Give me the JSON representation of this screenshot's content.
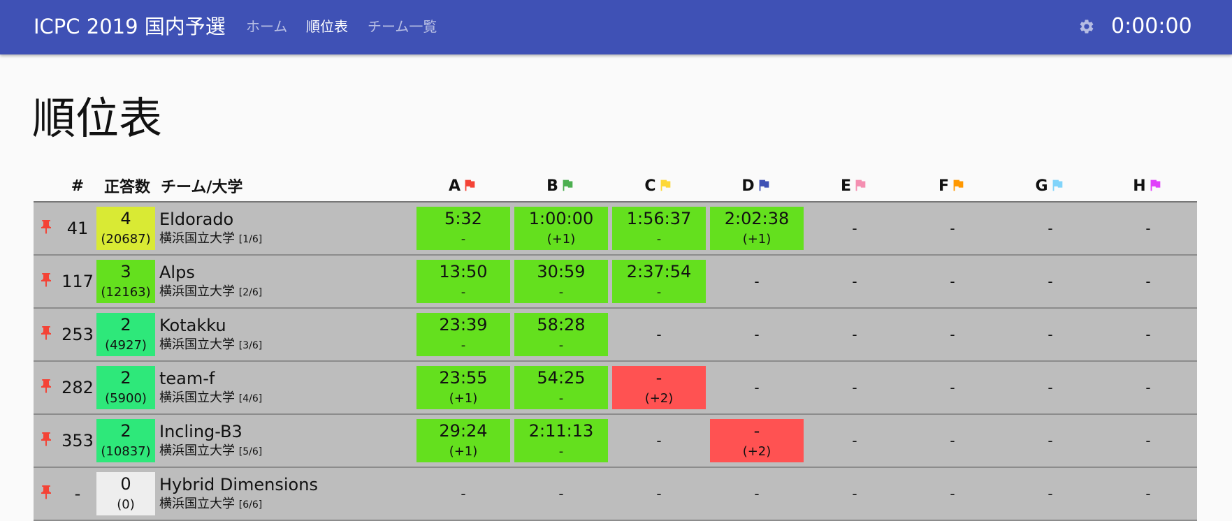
{
  "header": {
    "brand": "ICPC 2019 国内予選",
    "nav": [
      {
        "label": "ホーム",
        "active": false
      },
      {
        "label": "順位表",
        "active": true
      },
      {
        "label": "チーム一覧",
        "active": false
      }
    ],
    "timer": "0:00:00",
    "settings_icon": "gear-icon",
    "bar_color": "#3f51b5"
  },
  "page": {
    "title": "順位表"
  },
  "table": {
    "headers": {
      "rank": "#",
      "solved": "正答数",
      "team": "チーム/大学"
    },
    "problems": [
      {
        "label": "A",
        "color": "#f44336"
      },
      {
        "label": "B",
        "color": "#4caf50"
      },
      {
        "label": "C",
        "color": "#fdd835"
      },
      {
        "label": "D",
        "color": "#3f51b5"
      },
      {
        "label": "E",
        "color": "#f48fb1"
      },
      {
        "label": "F",
        "color": "#ff9800"
      },
      {
        "label": "G",
        "color": "#81d4fa"
      },
      {
        "label": "H",
        "color": "#e040fb"
      }
    ],
    "status_colors": {
      "solved": "#64e01e",
      "failed": "#ff5252"
    },
    "rows": [
      {
        "rank": "41",
        "solved": "4",
        "penalty": "(20687)",
        "solved_color": "#d9ea34",
        "team": "Eldorado",
        "university": "横浜国立大学",
        "index": "[1/6]",
        "results": [
          {
            "status": "solved",
            "time": "5:32",
            "tries": "-"
          },
          {
            "status": "solved",
            "time": "1:00:00",
            "tries": "(+1)"
          },
          {
            "status": "solved",
            "time": "1:56:37",
            "tries": "-"
          },
          {
            "status": "solved",
            "time": "2:02:38",
            "tries": "(+1)"
          },
          {
            "status": "none",
            "time": "-",
            "tries": ""
          },
          {
            "status": "none",
            "time": "-",
            "tries": ""
          },
          {
            "status": "none",
            "time": "-",
            "tries": ""
          },
          {
            "status": "none",
            "time": "-",
            "tries": ""
          }
        ]
      },
      {
        "rank": "117",
        "solved": "3",
        "penalty": "(12163)",
        "solved_color": "#64e01e",
        "team": "Alps",
        "university": "横浜国立大学",
        "index": "[2/6]",
        "results": [
          {
            "status": "solved",
            "time": "13:50",
            "tries": "-"
          },
          {
            "status": "solved",
            "time": "30:59",
            "tries": "-"
          },
          {
            "status": "solved",
            "time": "2:37:54",
            "tries": "-"
          },
          {
            "status": "none",
            "time": "-",
            "tries": ""
          },
          {
            "status": "none",
            "time": "-",
            "tries": ""
          },
          {
            "status": "none",
            "time": "-",
            "tries": ""
          },
          {
            "status": "none",
            "time": "-",
            "tries": ""
          },
          {
            "status": "none",
            "time": "-",
            "tries": ""
          }
        ]
      },
      {
        "rank": "253",
        "solved": "2",
        "penalty": "(4927)",
        "solved_color": "#2ee87a",
        "team": "Kotakku",
        "university": "横浜国立大学",
        "index": "[3/6]",
        "results": [
          {
            "status": "solved",
            "time": "23:39",
            "tries": "-"
          },
          {
            "status": "solved",
            "time": "58:28",
            "tries": "-"
          },
          {
            "status": "none",
            "time": "-",
            "tries": ""
          },
          {
            "status": "none",
            "time": "-",
            "tries": ""
          },
          {
            "status": "none",
            "time": "-",
            "tries": ""
          },
          {
            "status": "none",
            "time": "-",
            "tries": ""
          },
          {
            "status": "none",
            "time": "-",
            "tries": ""
          },
          {
            "status": "none",
            "time": "-",
            "tries": ""
          }
        ]
      },
      {
        "rank": "282",
        "solved": "2",
        "penalty": "(5900)",
        "solved_color": "#2ee87a",
        "team": "team-f",
        "university": "横浜国立大学",
        "index": "[4/6]",
        "results": [
          {
            "status": "solved",
            "time": "23:55",
            "tries": "(+1)"
          },
          {
            "status": "solved",
            "time": "54:25",
            "tries": "-"
          },
          {
            "status": "failed",
            "time": "-",
            "tries": "(+2)"
          },
          {
            "status": "none",
            "time": "-",
            "tries": ""
          },
          {
            "status": "none",
            "time": "-",
            "tries": ""
          },
          {
            "status": "none",
            "time": "-",
            "tries": ""
          },
          {
            "status": "none",
            "time": "-",
            "tries": ""
          },
          {
            "status": "none",
            "time": "-",
            "tries": ""
          }
        ]
      },
      {
        "rank": "353",
        "solved": "2",
        "penalty": "(10837)",
        "solved_color": "#2ee87a",
        "team": "Incling-B3",
        "university": "横浜国立大学",
        "index": "[5/6]",
        "results": [
          {
            "status": "solved",
            "time": "29:24",
            "tries": "(+1)"
          },
          {
            "status": "solved",
            "time": "2:11:13",
            "tries": "-"
          },
          {
            "status": "none",
            "time": "-",
            "tries": ""
          },
          {
            "status": "failed",
            "time": "-",
            "tries": "(+2)"
          },
          {
            "status": "none",
            "time": "-",
            "tries": ""
          },
          {
            "status": "none",
            "time": "-",
            "tries": ""
          },
          {
            "status": "none",
            "time": "-",
            "tries": ""
          },
          {
            "status": "none",
            "time": "-",
            "tries": ""
          }
        ]
      },
      {
        "rank": "-",
        "solved": "0",
        "penalty": "(0)",
        "solved_color": "#eeeeee",
        "team": "Hybrid Dimensions",
        "university": "横浜国立大学",
        "index": "[6/6]",
        "results": [
          {
            "status": "none",
            "time": "-",
            "tries": ""
          },
          {
            "status": "none",
            "time": "-",
            "tries": ""
          },
          {
            "status": "none",
            "time": "-",
            "tries": ""
          },
          {
            "status": "none",
            "time": "-",
            "tries": ""
          },
          {
            "status": "none",
            "time": "-",
            "tries": ""
          },
          {
            "status": "none",
            "time": "-",
            "tries": ""
          },
          {
            "status": "none",
            "time": "-",
            "tries": ""
          },
          {
            "status": "none",
            "time": "-",
            "tries": ""
          }
        ]
      }
    ]
  }
}
